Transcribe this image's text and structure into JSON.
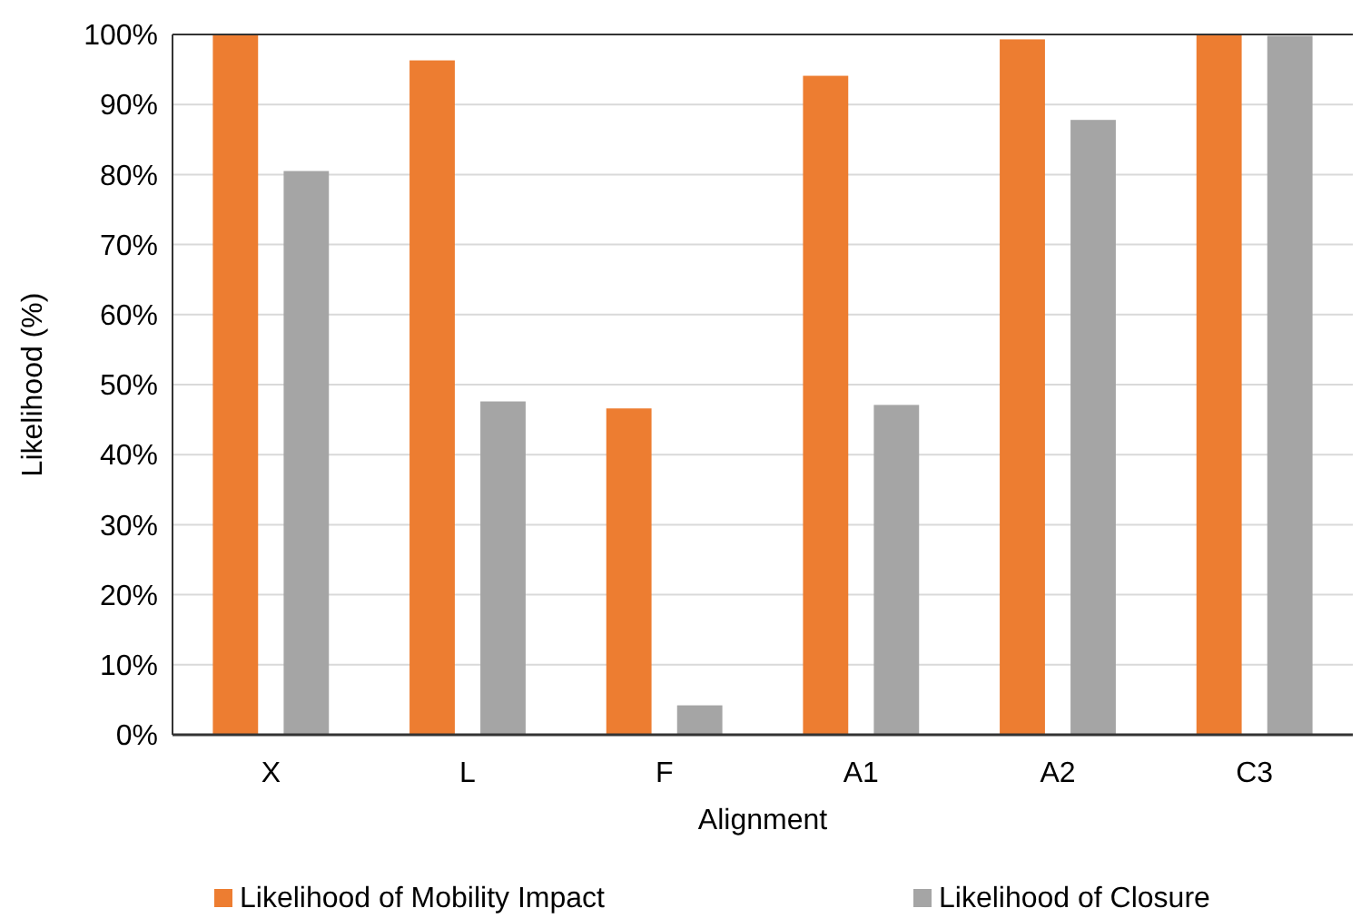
{
  "chart_data": {
    "type": "bar",
    "xlabel": "Alignment",
    "ylabel": "Likelihood (%)",
    "categories": [
      "X",
      "L",
      "F",
      "A1",
      "A2",
      "C3"
    ],
    "series": [
      {
        "name": "Likelihood of Mobility Impact",
        "color": "#ed7d31",
        "values": [
          100,
          96.3,
          46.6,
          94.1,
          99.3,
          100
        ]
      },
      {
        "name": "Likelihood of Closure",
        "color": "#a5a5a5",
        "values": [
          80.5,
          47.6,
          4.2,
          47.1,
          87.8,
          99.8
        ]
      }
    ],
    "ylim": [
      0,
      100
    ],
    "yticks": [
      {
        "value": 0,
        "label": "0%"
      },
      {
        "value": 10,
        "label": "10%"
      },
      {
        "value": 20,
        "label": "20%"
      },
      {
        "value": 30,
        "label": "30%"
      },
      {
        "value": 40,
        "label": "40%"
      },
      {
        "value": 50,
        "label": "50%"
      },
      {
        "value": 60,
        "label": "60%"
      },
      {
        "value": 70,
        "label": "70%"
      },
      {
        "value": 80,
        "label": "80%"
      },
      {
        "value": 90,
        "label": "90%"
      },
      {
        "value": 100,
        "label": "100%"
      }
    ],
    "grid": "y",
    "legend": "bottom"
  }
}
